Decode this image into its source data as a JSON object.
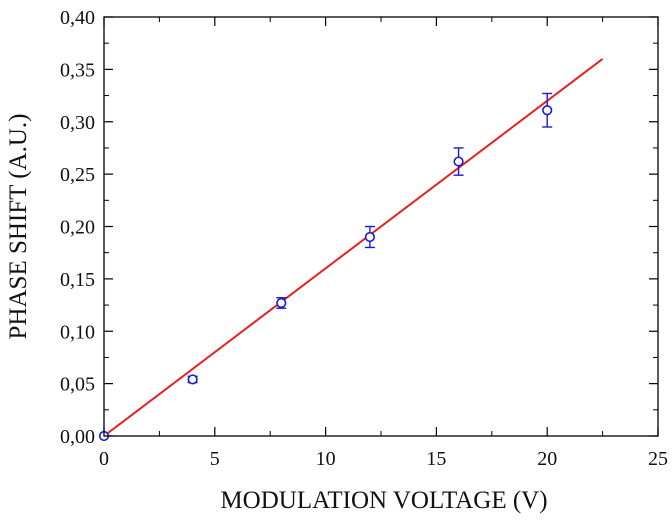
{
  "chart_data": {
    "type": "scatter",
    "title": "",
    "xlabel": "MODULATION VOLTAGE (V)",
    "ylabel": "PHASE SHIFT (A.U.)",
    "xlim": [
      0,
      25
    ],
    "ylim": [
      0,
      0.4
    ],
    "x_ticks": [
      "0",
      "5",
      "10",
      "15",
      "20",
      "25"
    ],
    "y_ticks": [
      "0,00",
      "0,05",
      "0,10",
      "0,15",
      "0,20",
      "0,25",
      "0,30",
      "0,35",
      "0,40"
    ],
    "grid": false,
    "legend": "none",
    "series": [
      {
        "points": [
          {
            "x": 0,
            "y": 0.0,
            "err": 0.0
          },
          {
            "x": 4,
            "y": 0.054,
            "err": 0.003
          },
          {
            "x": 8,
            "y": 0.127,
            "err": 0.005
          },
          {
            "x": 12,
            "y": 0.19,
            "err": 0.01
          },
          {
            "x": 16,
            "y": 0.262,
            "err": 0.013
          },
          {
            "x": 20,
            "y": 0.311,
            "err": 0.016
          }
        ],
        "color": "#1a1ad6"
      }
    ],
    "fit_line": {
      "x": [
        0,
        22.5
      ],
      "y": [
        0,
        0.36
      ],
      "color": "#e8201f"
    }
  }
}
